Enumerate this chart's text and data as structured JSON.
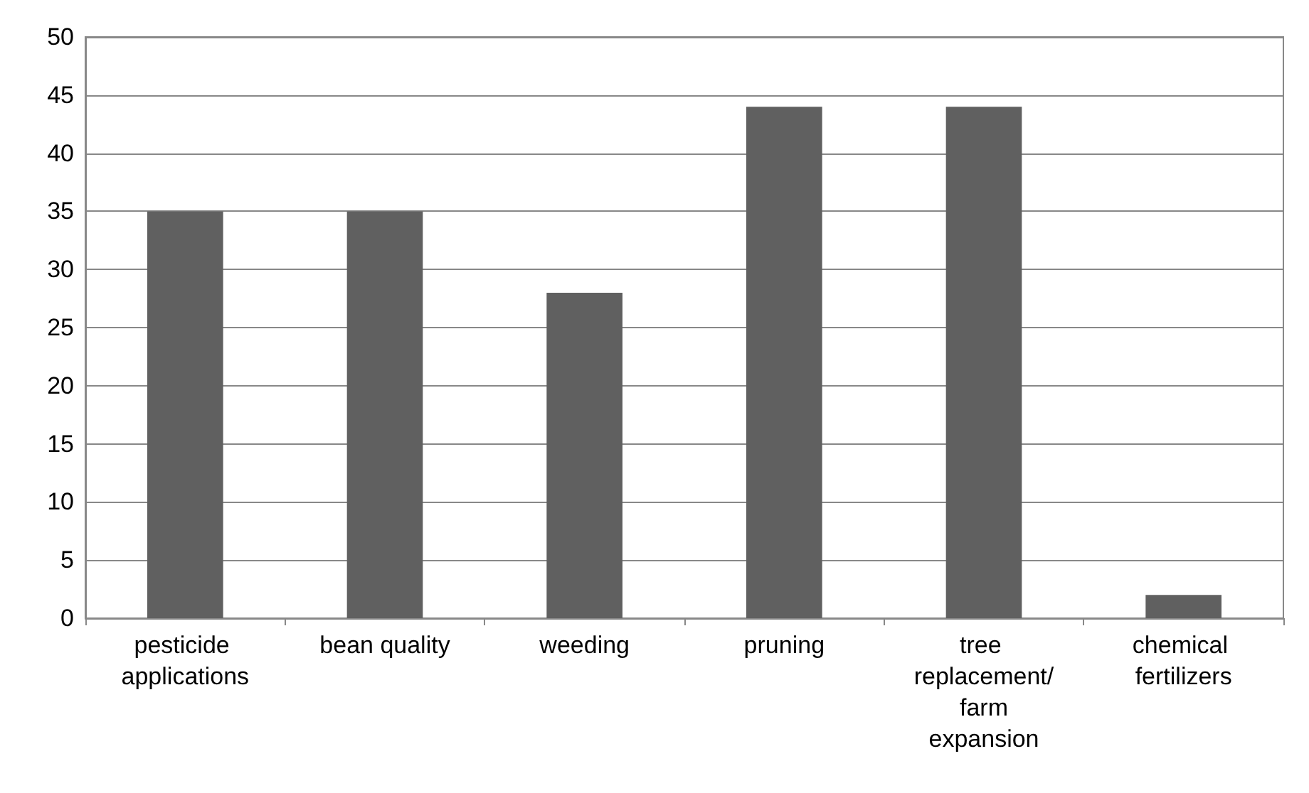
{
  "chart_data": {
    "type": "bar",
    "categories": [
      "pesticide applications",
      "bean quality",
      "weeding",
      "pruning",
      "tree replacement/ farm expansion",
      "chemical fertilizers"
    ],
    "values": [
      35,
      35,
      28,
      44,
      44,
      2
    ],
    "color": "#606060",
    "ylim": [
      0,
      50
    ],
    "yticks": [
      0,
      5,
      10,
      15,
      20,
      25,
      30,
      35,
      40,
      45,
      50
    ],
    "grid": "y"
  }
}
